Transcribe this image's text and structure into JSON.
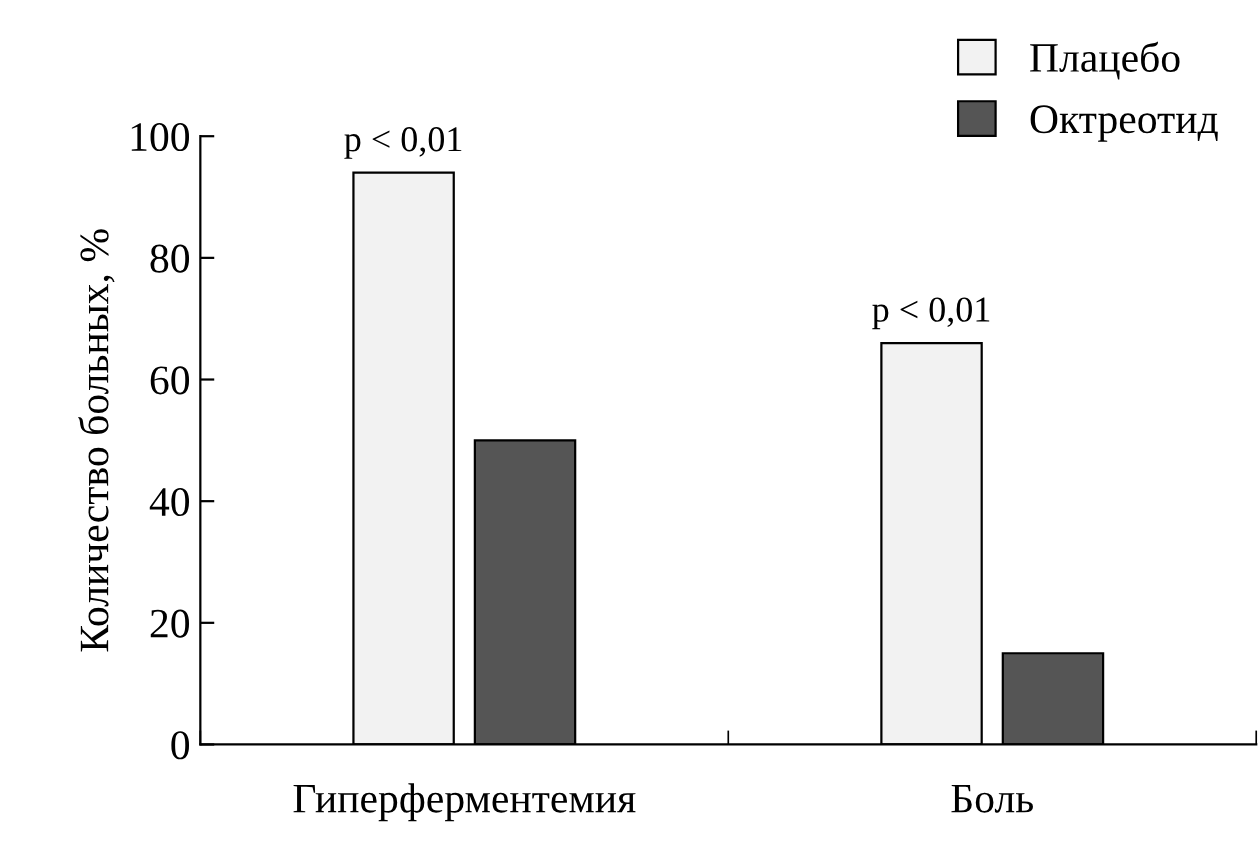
{
  "chart_data": {
    "type": "bar",
    "ylabel": "Количество больных, %",
    "categories": [
      "Гиперферментемия",
      "Боль"
    ],
    "series": [
      {
        "name": "Плацебо",
        "color": "#f2f2f2",
        "values": [
          94,
          66
        ]
      },
      {
        "name": "Октреотид",
        "color": "#555555",
        "values": [
          50,
          15
        ]
      }
    ],
    "ylim": [
      0,
      100
    ],
    "yticks": [
      0,
      20,
      40,
      60,
      80,
      100
    ],
    "grid": false,
    "legend": "top right",
    "annotations": [
      "p < 0,01",
      "p < 0,01"
    ]
  }
}
